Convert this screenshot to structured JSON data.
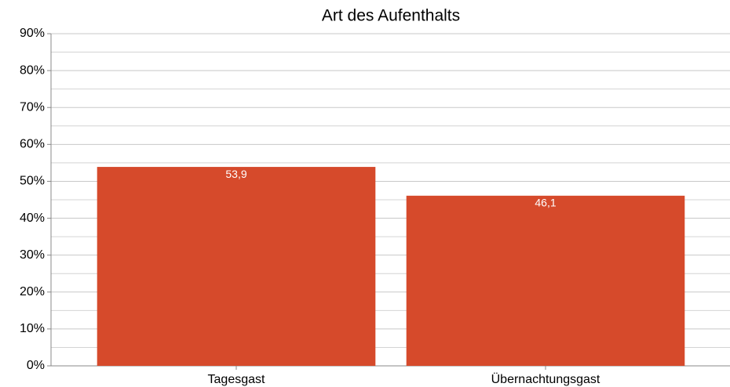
{
  "chart_data": {
    "type": "bar",
    "title": "Art des Aufenthalts",
    "categories": [
      "Tagesgast",
      "Übernachtungsgast"
    ],
    "values": [
      53.9,
      46.1
    ],
    "value_labels": [
      "53,9",
      "46,1"
    ],
    "color": "#d64a2b",
    "ylim": [
      0,
      90
    ],
    "yticks": [
      {
        "value": 0,
        "label": "0%"
      },
      {
        "value": 10,
        "label": "10%"
      },
      {
        "value": 20,
        "label": "20%"
      },
      {
        "value": 30,
        "label": "30%"
      },
      {
        "value": 40,
        "label": "40%"
      },
      {
        "value": 50,
        "label": "50%"
      },
      {
        "value": 60,
        "label": "60%"
      },
      {
        "value": 70,
        "label": "70%"
      },
      {
        "value": 80,
        "label": "80%"
      },
      {
        "value": 90,
        "label": "90%"
      }
    ],
    "minor_yticks": [
      5,
      15,
      25,
      35,
      45,
      55,
      65,
      75,
      85
    ],
    "grid": true
  }
}
